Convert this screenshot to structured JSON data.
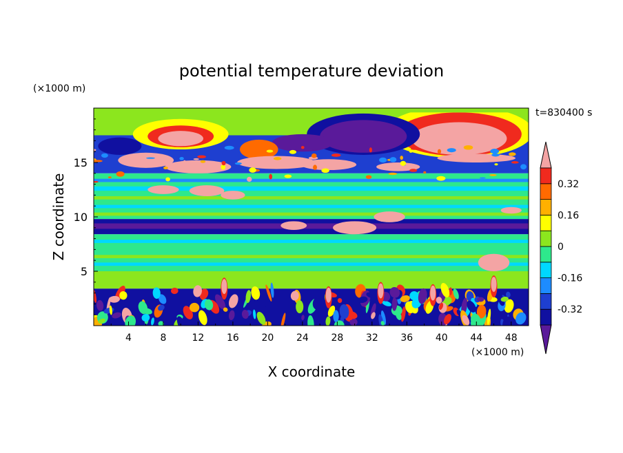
{
  "chart_data": {
    "type": "heatmap",
    "title": "potential temperature deviation",
    "xlabel": "X coordinate",
    "ylabel": "Z coordinate",
    "x_unit": "(×1000 m)",
    "y_unit": "(×1000 m)",
    "time_label": "t=830400 s",
    "xlim": [
      0,
      50
    ],
    "ylim": [
      0,
      20
    ],
    "x_ticks": [
      4,
      8,
      12,
      16,
      20,
      24,
      28,
      32,
      36,
      40,
      44,
      48
    ],
    "y_ticks": [
      5,
      10,
      15
    ],
    "colorbar": {
      "labels": [
        "0.32",
        "0.16",
        "0",
        "-0.16",
        "-0.32"
      ],
      "label_values": [
        0.32,
        0.16,
        0,
        -0.16,
        -0.32
      ],
      "levels": [
        -0.4,
        -0.32,
        -0.24,
        -0.16,
        -0.08,
        0,
        0.08,
        0.16,
        0.24,
        0.32,
        0.4
      ],
      "colors": [
        "#5a1a9a",
        "#1010a0",
        "#1e3fd0",
        "#1d8cff",
        "#00d8ff",
        "#2ee88c",
        "#8ce61e",
        "#ffff00",
        "#ffb000",
        "#ff6a00",
        "#f02a1e",
        "#f4a4a4"
      ]
    },
    "bands": [
      {
        "z": [
          0,
          3.4
        ],
        "value": "mixed"
      },
      {
        "z": [
          3.4,
          5.0
        ],
        "value": 0.02
      },
      {
        "z": [
          5.0,
          8.4
        ],
        "value": 0.0
      },
      {
        "z": [
          8.4,
          9.8
        ],
        "value": -0.32
      },
      {
        "z": [
          9.8,
          14.0
        ],
        "value": 0.0
      },
      {
        "z": [
          14.0,
          17.5
        ],
        "value": "mixed"
      },
      {
        "z": [
          17.5,
          20.0
        ],
        "value": 0.06
      }
    ]
  }
}
